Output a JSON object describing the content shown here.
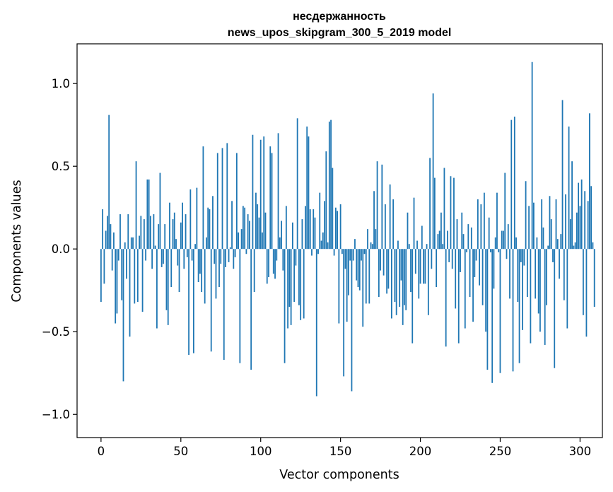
{
  "chart_data": {
    "type": "bar",
    "title": "несдержанность",
    "subtitle": "news_upos_skipgram_300_5_2019 model",
    "xlabel": "Vector components",
    "ylabel": "Components values",
    "xlim": [
      -15,
      314
    ],
    "ylim": [
      -1.14,
      1.24
    ],
    "xticks": [
      0,
      50,
      100,
      150,
      200,
      250,
      300
    ],
    "yticks": [
      -1.0,
      -0.5,
      0.0,
      0.5,
      1.0
    ],
    "xtick_labels": [
      "0",
      "50",
      "100",
      "150",
      "200",
      "250",
      "300"
    ],
    "ytick_labels": [
      "−1.0",
      "−0.5",
      "0.0",
      "0.5",
      "1.0"
    ],
    "bar_color": "#1f77b4",
    "values": [
      -0.32,
      0.24,
      -0.21,
      0.11,
      0.2,
      0.81,
      0.15,
      -0.13,
      0.1,
      -0.45,
      -0.39,
      -0.07,
      0.21,
      -0.31,
      -0.8,
      0.04,
      -0.18,
      0.21,
      -0.53,
      0.07,
      0.07,
      -0.33,
      0.53,
      -0.32,
      0.08,
      0.2,
      -0.38,
      0.18,
      -0.07,
      0.42,
      0.42,
      0.2,
      -0.12,
      0.21,
      0.02,
      -0.48,
      0.15,
      0.46,
      -0.11,
      -0.09,
      0.15,
      -0.37,
      -0.46,
      0.28,
      -0.23,
      0.18,
      0.22,
      0.06,
      -0.1,
      -0.26,
      0.16,
      0.28,
      -0.12,
      0.21,
      -0.05,
      -0.64,
      0.36,
      -0.07,
      -0.63,
      0.03,
      0.37,
      -0.2,
      -0.15,
      -0.26,
      0.62,
      -0.33,
      0.07,
      0.25,
      0.24,
      -0.62,
      0.32,
      -0.09,
      -0.3,
      0.58,
      -0.23,
      -0.09,
      0.61,
      -0.67,
      -0.11,
      0.64,
      -0.08,
      0.01,
      0.29,
      -0.12,
      -0.05,
      0.58,
      0.1,
      -0.69,
      0.12,
      0.26,
      0.25,
      -0.03,
      0.21,
      0.17,
      -0.73,
      0.69,
      -0.26,
      0.34,
      0.27,
      0.19,
      0.66,
      0.1,
      0.68,
      0.22,
      -0.21,
      -0.17,
      0.62,
      0.58,
      -0.15,
      -0.18,
      -0.07,
      0.7,
      0.07,
      0.17,
      -0.13,
      -0.69,
      0.26,
      -0.48,
      -0.35,
      -0.46,
      0.16,
      -0.32,
      -0.1,
      0.79,
      -0.34,
      -0.43,
      0.18,
      -0.42,
      0.26,
      0.74,
      0.68,
      0.24,
      -0.04,
      0.24,
      0.19,
      -0.89,
      -0.03,
      0.34,
      0.05,
      0.1,
      0.29,
      0.59,
      0.04,
      0.77,
      0.78,
      0.49,
      -0.04,
      0.25,
      0.23,
      -0.45,
      0.27,
      -0.03,
      -0.77,
      -0.12,
      -0.44,
      -0.28,
      -0.07,
      -0.86,
      -0.07,
      0.06,
      -0.19,
      -0.23,
      -0.25,
      -0.07,
      -0.47,
      -0.03,
      -0.33,
      0.12,
      -0.33,
      0.04,
      0.03,
      0.35,
      0.12,
      0.53,
      -0.29,
      -0.13,
      0.51,
      -0.16,
      0.27,
      -0.27,
      -0.24,
      0.39,
      -0.42,
      0.3,
      -0.32,
      -0.4,
      0.05,
      -0.35,
      -0.19,
      -0.46,
      -0.34,
      -0.37,
      0.22,
      0.03,
      -0.26,
      -0.57,
      0.31,
      -0.15,
      0.05,
      -0.3,
      -0.21,
      0.14,
      -0.21,
      -0.21,
      0.03,
      -0.4,
      0.55,
      -0.12,
      0.94,
      0.43,
      -0.23,
      0.09,
      0.11,
      0.22,
      0.03,
      0.49,
      -0.59,
      0.11,
      -0.08,
      0.44,
      -0.12,
      0.43,
      -0.36,
      0.18,
      -0.57,
      -0.14,
      0.22,
      0.09,
      -0.48,
      -0.02,
      0.15,
      -0.29,
      0.13,
      -0.44,
      -0.17,
      -0.07,
      0.3,
      -0.22,
      0.27,
      -0.34,
      0.34,
      -0.5,
      -0.73,
      0.19,
      -0.02,
      -0.81,
      -0.24,
      0.07,
      0.34,
      -0.02,
      -0.75,
      0.11,
      0.11,
      0.46,
      -0.06,
      0.15,
      -0.3,
      0.78,
      -0.74,
      0.8,
      0.07,
      -0.32,
      -0.69,
      -0.08,
      -0.49,
      -0.1,
      0.41,
      -0.29,
      0.26,
      -0.57,
      1.13,
      0.28,
      -0.3,
      0.07,
      -0.39,
      -0.5,
      0.3,
      0.13,
      -0.58,
      -0.34,
      0.02,
      0.32,
      0.18,
      -0.08,
      -0.72,
      0.3,
      0.06,
      -0.18,
      0.09,
      0.9,
      -0.31,
      0.33,
      -0.48,
      0.74,
      0.18,
      0.53,
      0.02,
      0.04,
      0.22,
      0.4,
      0.26,
      0.42,
      -0.4,
      0.35,
      -0.53,
      0.29,
      0.82,
      0.38,
      0.04,
      -0.35
    ]
  }
}
